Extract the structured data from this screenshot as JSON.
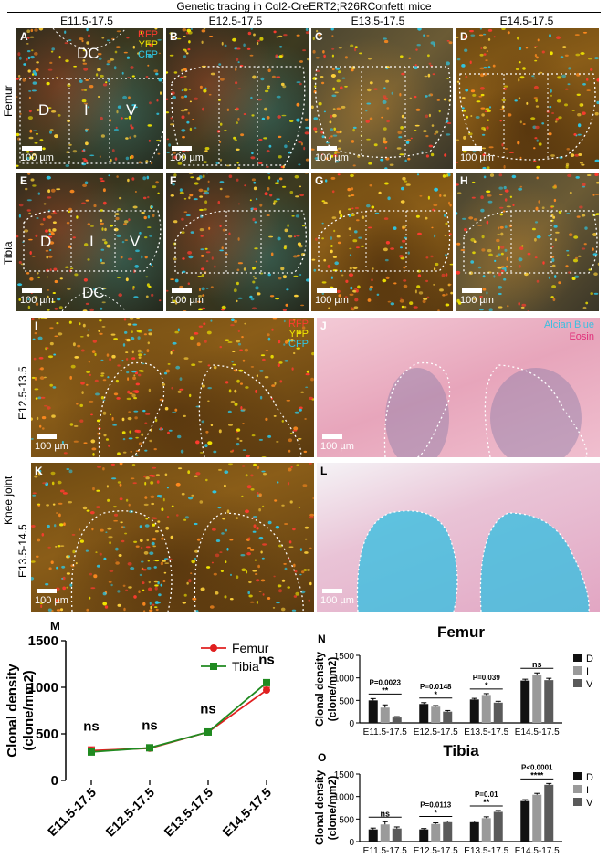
{
  "figure_title": "Genetic tracing in Col2-CreERT2;R26RConfetti mice",
  "columns": [
    "E11.5-17.5",
    "E12.5-17.5",
    "E13.5-17.5",
    "E14.5-17.5"
  ],
  "rows": {
    "femur": "Femur",
    "tibia": "Tibia",
    "knee": "Knee joint",
    "knee_top": "E12.5-13.5",
    "knee_bottom": "E13.5-14.5"
  },
  "panels": {
    "A": "A",
    "B": "B",
    "C": "C",
    "D": "D",
    "E": "E",
    "F": "F",
    "G": "G",
    "H": "H",
    "I": "I",
    "J": "J",
    "K": "K",
    "L": "L"
  },
  "scale": "100 µm",
  "regions": {
    "dc": "DC",
    "d": "D",
    "i": "I",
    "v": "V"
  },
  "fluor_legend": [
    "RFP",
    "YFP",
    "CFP"
  ],
  "stain_legend": [
    "Alcian Blue",
    "Eosin"
  ],
  "colors": {
    "rfp": "#ff3b2f",
    "yfp": "#f2e600",
    "cfp": "#2ec8e6",
    "alcian": "#3bbfe0",
    "eosin": "#e0307a",
    "femur": "#e02020",
    "tibia": "#208a20"
  },
  "chart_data": [
    {
      "panel": "M",
      "type": "line",
      "ylabel": "Clonal density\n(clone/mm2)",
      "ylim": [
        0,
        1500
      ],
      "yticks": [
        0,
        500,
        1000,
        1500
      ],
      "categories": [
        "E11.5-17.5",
        "E12.5-17.5",
        "E13.5-17.5",
        "E14.5-17.5"
      ],
      "series": [
        {
          "name": "Femur",
          "values": [
            320,
            345,
            520,
            970
          ],
          "errors": [
            40,
            25,
            25,
            30
          ]
        },
        {
          "name": "Tibia",
          "values": [
            305,
            350,
            520,
            1050
          ],
          "errors": [
            35,
            20,
            20,
            25
          ]
        }
      ],
      "annotations": [
        "ns",
        "ns",
        "ns",
        "ns"
      ]
    },
    {
      "panel": "N",
      "type": "bar",
      "title": "Femur",
      "ylabel": "Clonal density\n(clone/mm2)",
      "ylim": [
        0,
        1500
      ],
      "yticks": [
        0,
        500,
        1000,
        1500
      ],
      "categories": [
        "E11.5-17.5",
        "E12.5-17.5",
        "E13.5-17.5",
        "E14.5-17.5"
      ],
      "series": [
        {
          "name": "D",
          "values": [
            500,
            420,
            520,
            940
          ],
          "errors": [
            40,
            30,
            25,
            30
          ]
        },
        {
          "name": "I",
          "values": [
            340,
            360,
            620,
            1060
          ],
          "errors": [
            60,
            25,
            30,
            50
          ]
        },
        {
          "name": "V",
          "values": [
            120,
            250,
            450,
            950
          ],
          "errors": [
            20,
            25,
            30,
            40
          ]
        }
      ],
      "pvalues": [
        "P=0.0023",
        "P=0.0148",
        "P=0.039",
        ""
      ],
      "stars": [
        "**",
        "*",
        "*",
        "ns"
      ]
    },
    {
      "panel": "O",
      "type": "bar",
      "title": "Tibia",
      "ylabel": "Clonal density\n(clone/mm2)",
      "ylim": [
        0,
        1500
      ],
      "yticks": [
        0,
        500,
        1000,
        1500
      ],
      "categories": [
        "E11.5-17.5",
        "E12.5-17.5",
        "E13.5-17.5",
        "E14.5-17.5"
      ],
      "series": [
        {
          "name": "D",
          "values": [
            270,
            270,
            430,
            900
          ],
          "errors": [
            30,
            20,
            25,
            30
          ]
        },
        {
          "name": "I",
          "values": [
            380,
            390,
            520,
            1040
          ],
          "errors": [
            60,
            25,
            30,
            30
          ]
        },
        {
          "name": "V",
          "values": [
            290,
            430,
            660,
            1260
          ],
          "errors": [
            35,
            25,
            30,
            30
          ]
        }
      ],
      "pvalues": [
        "",
        "P=0.0113",
        "P=0.01",
        "P<0.0001"
      ],
      "stars": [
        "ns",
        "*",
        "**",
        "****"
      ]
    }
  ]
}
